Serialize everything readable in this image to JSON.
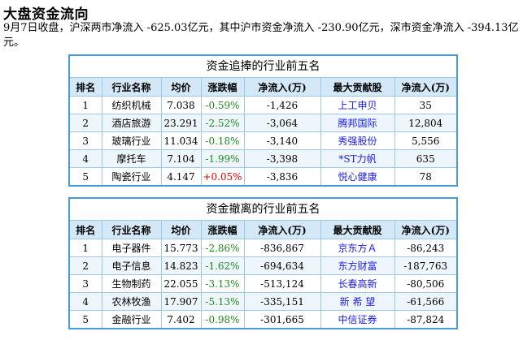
{
  "page": {
    "title": "大盘资金流向",
    "summary": "9月7日收盘，沪深两市净流入 -625.03亿元，其中沪市资金净流入 -230.90亿元，深市资金净流入 -394.13亿元。"
  },
  "headers": [
    "排名",
    "行业名称",
    "均价",
    "涨跌幅",
    "净流入(万)",
    "最大贡献股",
    "净流入(万)"
  ],
  "inflow": {
    "title": "资金追捧的行业前五名",
    "rows": [
      {
        "rank": "1",
        "name": "纺织机械",
        "price": "7.038",
        "change": "-0.59%",
        "flow": "-1,426",
        "stock": "上工申贝",
        "stock_flow": "35"
      },
      {
        "rank": "2",
        "name": "酒店旅游",
        "price": "23.291",
        "change": "-2.52%",
        "flow": "-3,064",
        "stock": "腾邦国际",
        "stock_flow": "12,804"
      },
      {
        "rank": "3",
        "name": "玻璃行业",
        "price": "11.034",
        "change": "-0.18%",
        "flow": "-3,140",
        "stock": "秀强股份",
        "stock_flow": "5,556"
      },
      {
        "rank": "4",
        "name": "摩托车",
        "price": "7.104",
        "change": "-1.99%",
        "flow": "-3,398",
        "stock": "*ST力帆",
        "stock_flow": "635"
      },
      {
        "rank": "5",
        "name": "陶瓷行业",
        "price": "4.147",
        "change": "+0.05%",
        "flow": "-3,836",
        "stock": "悦心健康",
        "stock_flow": "78"
      }
    ]
  },
  "outflow": {
    "title": "资金撤离的行业前五名",
    "rows": [
      {
        "rank": "1",
        "name": "电子器件",
        "price": "15.773",
        "change": "-2.86%",
        "flow": "-836,867",
        "stock": "京东方Ａ",
        "stock_flow": "-86,243"
      },
      {
        "rank": "2",
        "name": "电子信息",
        "price": "14.823",
        "change": "-1.62%",
        "flow": "-694,634",
        "stock": "东方财富",
        "stock_flow": "-187,763"
      },
      {
        "rank": "3",
        "name": "生物制药",
        "price": "22.055",
        "change": "-3.13%",
        "flow": "-513,124",
        "stock": "长春高新",
        "stock_flow": "-80,506"
      },
      {
        "rank": "4",
        "name": "农林牧渔",
        "price": "17.907",
        "change": "-5.13%",
        "flow": "-335,151",
        "stock": "新 希 望",
        "stock_flow": "-61,566"
      },
      {
        "rank": "5",
        "name": "金融行业",
        "price": "7.402",
        "change": "-0.98%",
        "flow": "-301,665",
        "stock": "中信证券",
        "stock_flow": "-87,824"
      }
    ]
  },
  "colors": {
    "border": "#4a9ad6",
    "header_bg": "#d4e9f7",
    "alt_row_bg": "#eef6fc",
    "down": "#1c8a1c",
    "up": "#e00000",
    "link": "#1a1aee"
  }
}
